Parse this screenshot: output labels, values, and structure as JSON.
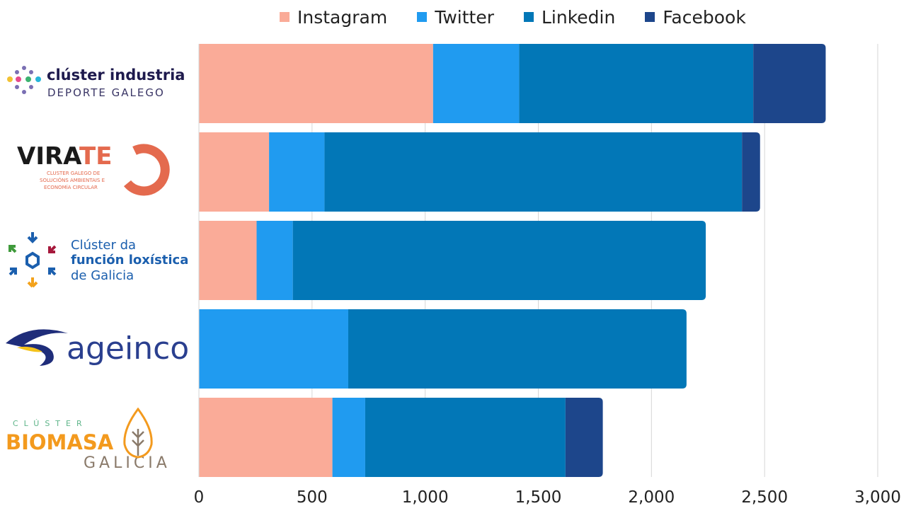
{
  "chart_data": {
    "type": "bar",
    "orientation": "horizontal",
    "stacked": true,
    "categories": [
      "clúster industria DEPORTE GALEGO",
      "VIRATE CLUSTER GALEGO DE SOLUCIÓNS AMBIENTAIS E ECONOMÍA CIRCULAR",
      "Clúster da función loxística de Galicia",
      "ageinco",
      "CLÚSTER BIOMASA GALICIA"
    ],
    "series": [
      {
        "name": "Instagram",
        "color": "#faab98",
        "values": [
          1035,
          310,
          255,
          0,
          590
        ]
      },
      {
        "name": "Twitter",
        "color": "#209bf0",
        "values": [
          380,
          245,
          160,
          660,
          145
        ]
      },
      {
        "name": "Linkedin",
        "color": "#0277b7",
        "values": [
          1035,
          1845,
          1825,
          1495,
          885
        ]
      },
      {
        "name": "Facebook",
        "color": "#1d468b",
        "values": [
          320,
          80,
          0,
          0,
          165
        ]
      }
    ],
    "xlim": [
      0,
      3000
    ],
    "xticks": [
      "0",
      "500",
      "1,000",
      "1,500",
      "2,000",
      "2,500",
      "3,000"
    ],
    "xtick_values": [
      0,
      500,
      1000,
      1500,
      2000,
      2500,
      3000
    ],
    "grid": true,
    "legend_position": "top"
  },
  "logos": {
    "deporte": {
      "line1": "clúster industria",
      "line2": "DEPORTE GALEGO"
    },
    "virate": {
      "title_a": "VIRA",
      "title_b": "TE",
      "sub1": "CLUSTER GALEGO DE",
      "sub2": "SOLUCIÓNS AMBIENTAIS E",
      "sub3": "ECONOMÍA CIRCULAR"
    },
    "loxistica": {
      "line1": "Clúster da",
      "line2": "función loxística",
      "line3": "de Galicia"
    },
    "ageinco": {
      "name": "ageinco"
    },
    "biomasa": {
      "line1": "CLÚSTER",
      "line2": "BIOMASA",
      "line3": "GALICIA"
    }
  }
}
